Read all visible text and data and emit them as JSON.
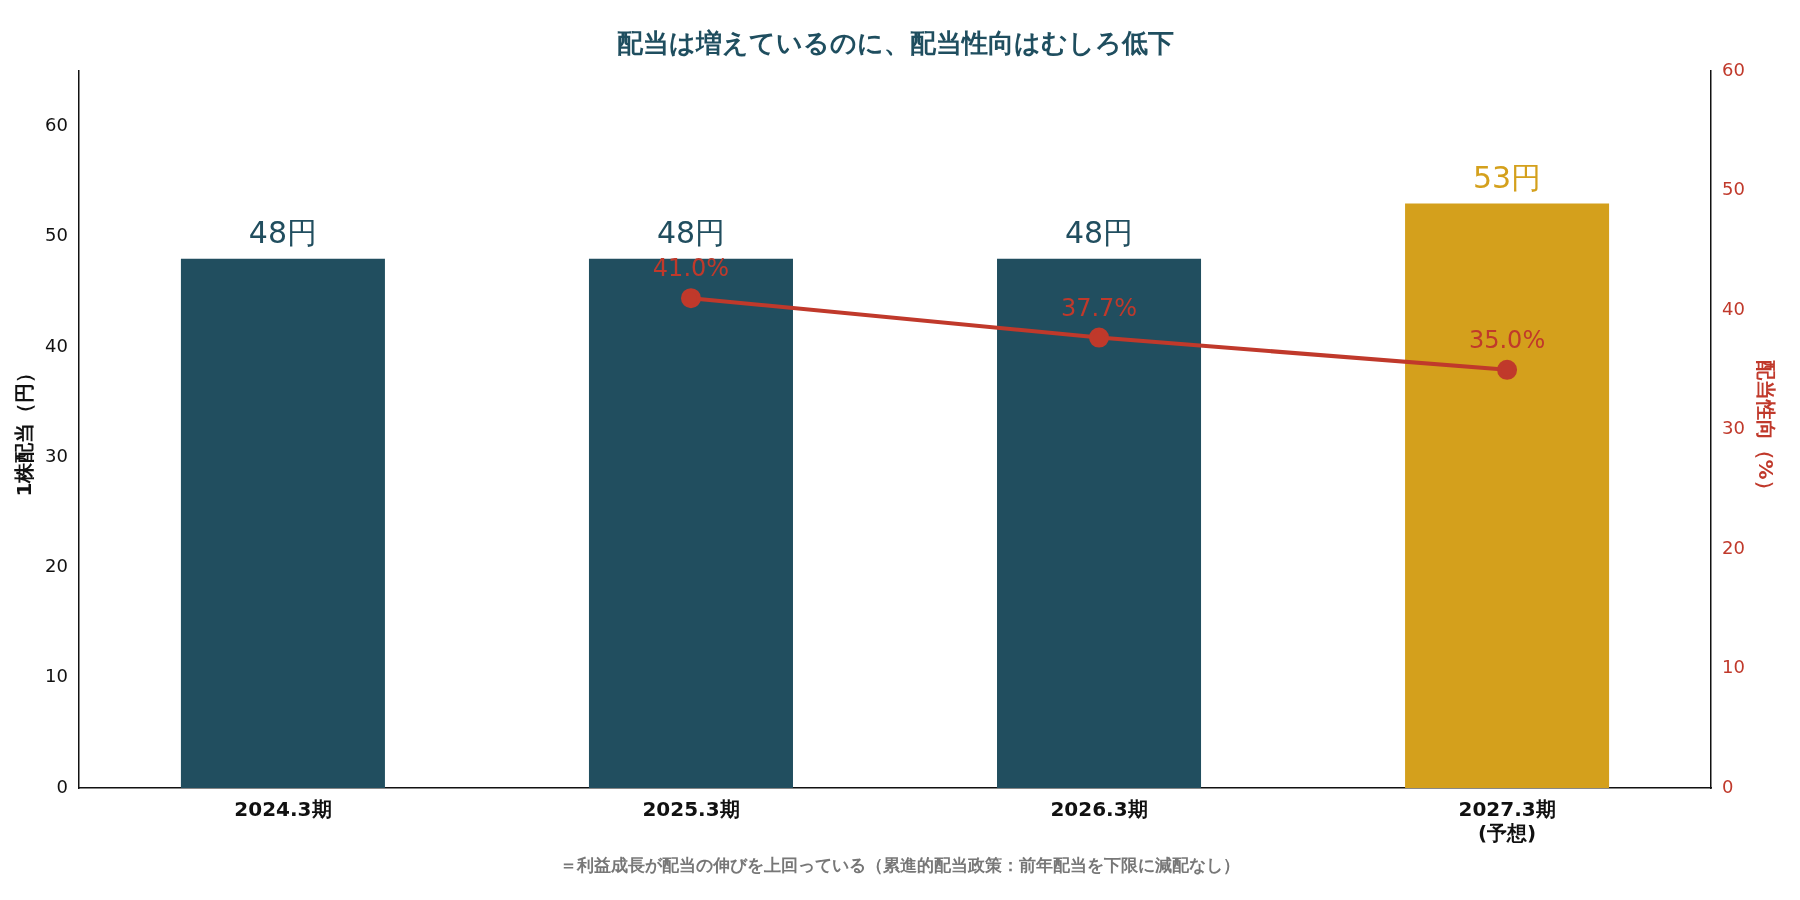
{
  "chart_data": {
    "type": "bar",
    "title": "配当は増えているのに、配当性向はむしろ低下",
    "categories": [
      "2024.3期",
      "2025.3期",
      "2026.3期",
      "2027.3期\n(予想)"
    ],
    "ylabel": "1株配当（円）",
    "y2label": "配当性向（%）",
    "series": [
      {
        "colors": [
          "#214e5f",
          "#214e5f",
          "#214e5f",
          "#d4a01c"
        ],
        "values": [
          48,
          48,
          48,
          53
        ],
        "value_labels": [
          "48円",
          "48円",
          "48円",
          "53円"
        ]
      },
      {
        "type": "line",
        "axis": "y2",
        "color": "#c0392b",
        "marker": "circle",
        "values": [
          null,
          41.0,
          37.7,
          35.0
        ],
        "value_labels": [
          null,
          "41.0%",
          "37.7%",
          "35.0%"
        ]
      }
    ],
    "ylim": [
      0,
      65
    ],
    "yticks": [
      0,
      10,
      20,
      30,
      40,
      50,
      60
    ],
    "y2lim": [
      0,
      60
    ],
    "y2ticks": [
      0,
      10,
      20,
      30,
      40,
      50,
      60
    ],
    "grid": false,
    "legend": false,
    "annotations": [
      "＝利益成長が配当の伸びを上回っている（累進的配当政策：前年配当を下限に減配なし）"
    ]
  }
}
